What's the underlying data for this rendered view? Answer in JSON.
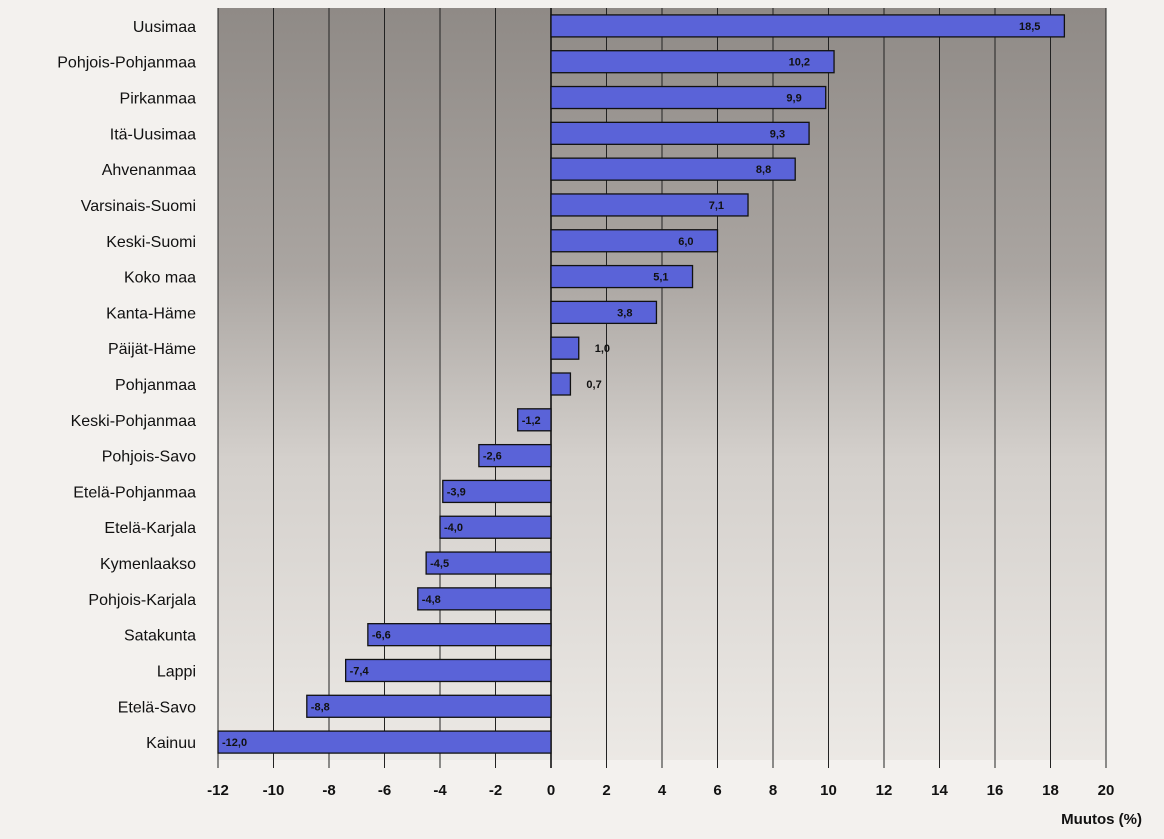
{
  "chart_data": {
    "type": "bar",
    "orientation": "horizontal",
    "categories": [
      "Uusimaa",
      "Pohjois-Pohjanmaa",
      "Pirkanmaa",
      "Itä-Uusimaa",
      "Ahvenanmaa",
      "Varsinais-Suomi",
      "Keski-Suomi",
      "Koko maa",
      "Kanta-Häme",
      "Päijät-Häme",
      "Pohjanmaa",
      "Keski-Pohjanmaa",
      "Pohjois-Savo",
      "Etelä-Pohjanmaa",
      "Etelä-Karjala",
      "Kymenlaakso",
      "Pohjois-Karjala",
      "Satakunta",
      "Lappi",
      "Etelä-Savo",
      "Kainuu"
    ],
    "values": [
      18.5,
      10.2,
      9.9,
      9.3,
      8.8,
      7.1,
      6.0,
      5.1,
      3.8,
      1.0,
      0.7,
      -1.2,
      -2.6,
      -3.9,
      -4.0,
      -4.5,
      -4.8,
      -6.6,
      -7.4,
      -8.8,
      -12.0
    ],
    "data_labels": [
      "18,5",
      "10,2",
      "9,9",
      "9,3",
      "8,8",
      "7,1",
      "6,0",
      "5,1",
      "3,8",
      "1,0",
      "0,7",
      "-1,2",
      "-2,6",
      "-3,9",
      "-4,0",
      "-4,5",
      "-4,8",
      "-6,6",
      "-7,4",
      "-8,8",
      "-12,0"
    ],
    "xlabel": "Muutos (%)",
    "ylabel": "",
    "title": "",
    "xlim": [
      -12,
      20
    ],
    "xticks": [
      -12,
      -10,
      -8,
      -6,
      -4,
      -2,
      0,
      2,
      4,
      6,
      8,
      10,
      12,
      14,
      16,
      18,
      20
    ],
    "grid": "vertical",
    "bar_color": "#5a63d8",
    "background_color": "#b8b3ae"
  }
}
